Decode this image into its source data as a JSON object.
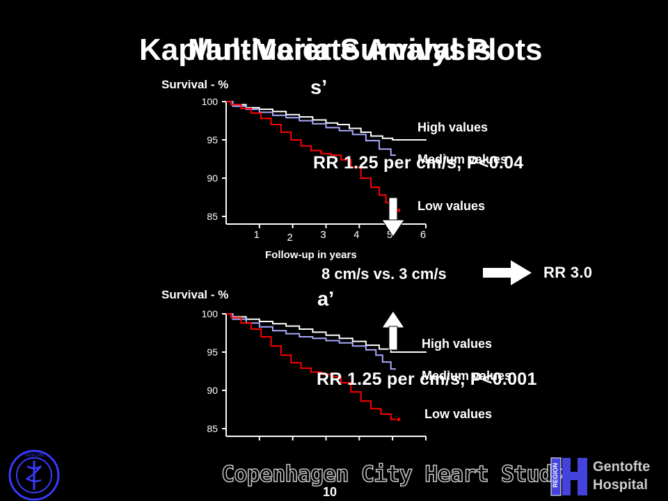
{
  "slide": {
    "title_back": "Kaplan-Meier Survival Plots",
    "title_front": "Multivariate Analysis",
    "page_number": "10",
    "footer_text": "Copenhagen City Heart Study",
    "hospital_name_line1": "Gentofte",
    "hospital_name_line2": "Hospital",
    "region_label": "REGION"
  },
  "comparison": {
    "text": "8 cm/s vs. 3 cm/s",
    "result": "RR 3.0"
  },
  "colors": {
    "high": "#ffffff",
    "medium": "#a9a9ff",
    "low": "#ff0000",
    "axis": "#ffffff",
    "background": "#000000"
  },
  "chart_data": [
    {
      "type": "line",
      "subtitle": "s’",
      "ylabel": "Survival - %",
      "xlabel": "Follow-up in years",
      "xlim": [
        0,
        6
      ],
      "ylim": [
        84,
        100
      ],
      "yticks": [
        "100",
        "95",
        "90",
        "85"
      ],
      "xticks": [
        "1",
        "2",
        "3",
        "4",
        "5",
        "6"
      ],
      "annotation": "RR 1.25 per cm/s, P<0.04",
      "series": [
        {
          "name": "High values",
          "key": "high",
          "points": [
            [
              0,
              100
            ],
            [
              0.4,
              99.6
            ],
            [
              0.8,
              99.2
            ],
            [
              1.2,
              99
            ],
            [
              1.6,
              98.7
            ],
            [
              2,
              98.3
            ],
            [
              2.4,
              98
            ],
            [
              2.8,
              97.6
            ],
            [
              3.2,
              97.2
            ],
            [
              3.5,
              97
            ],
            [
              3.9,
              96.5
            ],
            [
              4.2,
              96
            ],
            [
              4.5,
              95.5
            ],
            [
              4.9,
              95.2
            ],
            [
              5.1,
              95
            ]
          ]
        },
        {
          "name": "Medium values",
          "key": "medium",
          "points": [
            [
              0,
              100
            ],
            [
              0.4,
              99.4
            ],
            [
              0.8,
              99
            ],
            [
              1.2,
              98.6
            ],
            [
              1.6,
              98.2
            ],
            [
              2,
              97.9
            ],
            [
              2.4,
              97.5
            ],
            [
              2.8,
              97.1
            ],
            [
              3.2,
              96.6
            ],
            [
              3.6,
              96.2
            ],
            [
              4,
              95.7
            ],
            [
              4.4,
              94.9
            ],
            [
              4.8,
              93.8
            ],
            [
              5.1,
              93
            ]
          ]
        },
        {
          "name": "Low values",
          "key": "low",
          "points": [
            [
              0,
              100
            ],
            [
              0.3,
              99.6
            ],
            [
              0.6,
              99.1
            ],
            [
              0.9,
              98.5
            ],
            [
              1.2,
              97.8
            ],
            [
              1.5,
              97
            ],
            [
              1.8,
              96
            ],
            [
              2.1,
              95
            ],
            [
              2.4,
              94.2
            ],
            [
              2.7,
              93.6
            ],
            [
              3,
              93.2
            ],
            [
              3.3,
              93
            ],
            [
              3.6,
              92.4
            ],
            [
              3.9,
              91.4
            ],
            [
              4.2,
              90
            ],
            [
              4.5,
              88.8
            ],
            [
              4.7,
              87.8
            ],
            [
              4.9,
              86.8
            ],
            [
              5.1,
              85.8
            ]
          ]
        }
      ]
    },
    {
      "type": "line",
      "subtitle": "a’",
      "ylabel": "Survival - %",
      "xlabel": "",
      "xlim": [
        0,
        6
      ],
      "ylim": [
        84,
        100
      ],
      "yticks": [
        "100",
        "95",
        "90",
        "85"
      ],
      "xticks": [],
      "annotation": "RR 1.25 per cm/s, P<0.001",
      "series": [
        {
          "name": "High values",
          "key": "high",
          "points": [
            [
              0,
              100
            ],
            [
              0.4,
              99.6
            ],
            [
              0.8,
              99.3
            ],
            [
              1.2,
              99
            ],
            [
              1.6,
              98.7
            ],
            [
              2,
              98.4
            ],
            [
              2.4,
              98
            ],
            [
              2.8,
              97.6
            ],
            [
              3.2,
              97.2
            ],
            [
              3.6,
              96.8
            ],
            [
              4,
              96.4
            ],
            [
              4.4,
              95.9
            ],
            [
              4.8,
              95.4
            ],
            [
              5.1,
              95
            ]
          ]
        },
        {
          "name": "Medium values",
          "key": "medium",
          "points": [
            [
              0,
              100
            ],
            [
              0.4,
              99.3
            ],
            [
              0.8,
              98.8
            ],
            [
              1.2,
              98.3
            ],
            [
              1.6,
              97.8
            ],
            [
              2,
              97.4
            ],
            [
              2.4,
              97
            ],
            [
              2.8,
              96.8
            ],
            [
              3.2,
              96.5
            ],
            [
              3.6,
              96.2
            ],
            [
              4,
              95.8
            ],
            [
              4.4,
              95.3
            ],
            [
              4.6,
              94.6
            ],
            [
              4.8,
              93.7
            ],
            [
              5.1,
              92.8
            ]
          ]
        },
        {
          "name": "Low values",
          "key": "low",
          "points": [
            [
              0,
              100
            ],
            [
              0.3,
              99.5
            ],
            [
              0.6,
              98.8
            ],
            [
              0.9,
              98
            ],
            [
              1.2,
              97
            ],
            [
              1.5,
              95.8
            ],
            [
              1.8,
              94.6
            ],
            [
              2.1,
              93.6
            ],
            [
              2.4,
              92.9
            ],
            [
              2.7,
              92.4
            ],
            [
              3,
              92.1
            ],
            [
              3.3,
              91.8
            ],
            [
              3.6,
              91
            ],
            [
              3.9,
              89.8
            ],
            [
              4.2,
              88.6
            ],
            [
              4.5,
              87.6
            ],
            [
              4.8,
              86.9
            ],
            [
              5.1,
              86.2
            ]
          ]
        }
      ]
    }
  ]
}
